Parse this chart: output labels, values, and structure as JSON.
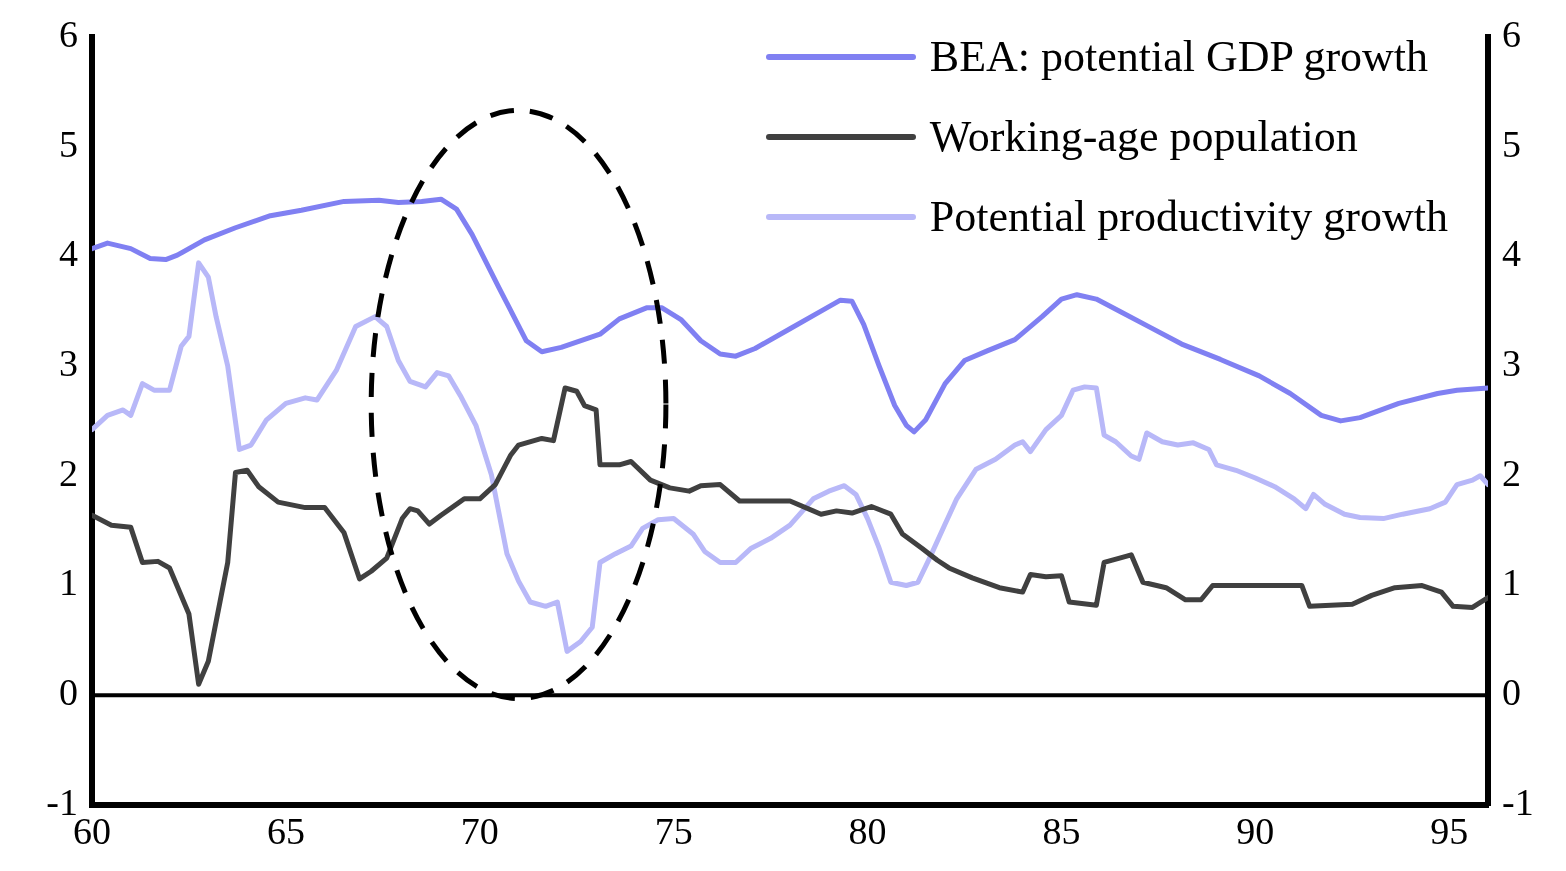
{
  "chart_data": {
    "type": "line",
    "xlim": [
      60,
      96
    ],
    "xticks": [
      60,
      65,
      70,
      75,
      80,
      85,
      90,
      95
    ],
    "ylim": [
      -1,
      6
    ],
    "yticks": [
      -1,
      0,
      1,
      2,
      3,
      4,
      5,
      6
    ],
    "y2lim": [
      -1,
      6
    ],
    "y2ticks": [
      -1,
      0,
      1,
      2,
      3,
      4,
      5,
      6
    ],
    "grid": false,
    "legend": "top right",
    "marker": "none",
    "line_style": "solid",
    "ref_lines": [
      {
        "axis": "y",
        "value": 0,
        "color": "#000000"
      }
    ],
    "series": [
      {
        "name": "BEA: potential GDP growth",
        "color": "#8080f2",
        "x": [
          60,
          60.4,
          61,
          61.5,
          61.9,
          62.2,
          62.9,
          63.7,
          64.6,
          65.4,
          66.5,
          67.4,
          67.9,
          68.5,
          69,
          69.4,
          69.8,
          70.5,
          71.2,
          71.6,
          72.1,
          73.1,
          73.6,
          74.3,
          74.7,
          75.2,
          75.7,
          76.2,
          76.6,
          77.1,
          78,
          78.8,
          79.3,
          79.6,
          79.9,
          80.3,
          80.7,
          81,
          81.2,
          81.5,
          82,
          82.5,
          83.1,
          83.8,
          84.5,
          85,
          85.4,
          85.9,
          86.5,
          87.3,
          88.1,
          89.1,
          90.1,
          90.9,
          91.7,
          92.2,
          92.7,
          93.7,
          94.7,
          95.2,
          96
        ],
        "values": [
          4.07,
          4.12,
          4.07,
          3.98,
          3.97,
          4.01,
          4.15,
          4.26,
          4.37,
          4.42,
          4.5,
          4.51,
          4.49,
          4.5,
          4.52,
          4.43,
          4.2,
          3.71,
          3.23,
          3.13,
          3.17,
          3.29,
          3.43,
          3.53,
          3.53,
          3.42,
          3.23,
          3.11,
          3.09,
          3.16,
          3.34,
          3.5,
          3.6,
          3.59,
          3.38,
          3,
          2.64,
          2.46,
          2.4,
          2.51,
          2.84,
          3.05,
          3.14,
          3.24,
          3.45,
          3.61,
          3.65,
          3.61,
          3.5,
          3.35,
          3.2,
          3.06,
          2.91,
          2.75,
          2.55,
          2.5,
          2.53,
          2.66,
          2.75,
          2.78,
          2.8
        ]
      },
      {
        "name": "Working-age population",
        "color": "#404040",
        "x": [
          60,
          60.5,
          61,
          61.3,
          61.7,
          62,
          62.5,
          62.75,
          63,
          63.3,
          63.5,
          63.7,
          64,
          64.3,
          64.8,
          65.5,
          66,
          66.5,
          66.9,
          67.2,
          67.6,
          68,
          68.2,
          68.4,
          68.7,
          69,
          69.6,
          70,
          70.4,
          70.8,
          71,
          71.6,
          71.9,
          72.2,
          72.5,
          72.7,
          73,
          73.1,
          73.6,
          73.9,
          74.4,
          74.9,
          75.4,
          75.7,
          76.2,
          76.7,
          77.2,
          78,
          78.8,
          79.2,
          79.6,
          80.1,
          80.6,
          80.9,
          81.4,
          81.8,
          82.1,
          82.7,
          83.4,
          84,
          84.2,
          84.6,
          85,
          85.2,
          85.9,
          86.1,
          86.5,
          86.8,
          87.1,
          87.7,
          88.2,
          88.6,
          88.9,
          91.2,
          91.4,
          92.5,
          93,
          93.6,
          94.3,
          94.8,
          95.1,
          95.6,
          96
        ],
        "values": [
          1.64,
          1.55,
          1.53,
          1.21,
          1.22,
          1.16,
          0.74,
          0.1,
          0.31,
          0.85,
          1.21,
          2.03,
          2.05,
          1.9,
          1.76,
          1.71,
          1.71,
          1.48,
          1.06,
          1.13,
          1.25,
          1.61,
          1.7,
          1.68,
          1.56,
          1.64,
          1.79,
          1.79,
          1.92,
          2.19,
          2.28,
          2.34,
          2.32,
          2.8,
          2.77,
          2.64,
          2.6,
          2.1,
          2.1,
          2.13,
          1.96,
          1.89,
          1.86,
          1.91,
          1.92,
          1.77,
          1.77,
          1.77,
          1.65,
          1.68,
          1.66,
          1.72,
          1.65,
          1.47,
          1.34,
          1.23,
          1.16,
          1.07,
          0.98,
          0.94,
          1.1,
          1.08,
          1.09,
          0.85,
          0.82,
          1.21,
          1.25,
          1.28,
          1.03,
          0.98,
          0.87,
          0.87,
          1,
          1,
          0.81,
          0.83,
          0.91,
          0.98,
          1,
          0.94,
          0.81,
          0.8,
          0.89
        ]
      },
      {
        "name": "Potential productivity growth",
        "color": "#b8b8f8",
        "x": [
          60,
          60.4,
          60.8,
          61,
          61.3,
          61.6,
          62,
          62.3,
          62.5,
          62.75,
          63,
          63.2,
          63.5,
          63.8,
          64.1,
          64.5,
          65,
          65.5,
          65.8,
          66.3,
          66.8,
          67.3,
          67.6,
          67.9,
          68.2,
          68.6,
          68.9,
          69.2,
          69.5,
          69.9,
          70.3,
          70.7,
          71,
          71.3,
          71.7,
          72,
          72.25,
          72.6,
          72.9,
          73.1,
          73.5,
          73.9,
          74.2,
          74.6,
          75,
          75.5,
          75.8,
          76.2,
          76.6,
          77,
          77.5,
          78,
          78.6,
          79,
          79.4,
          79.7,
          80,
          80.3,
          80.6,
          81,
          81.3,
          81.6,
          82,
          82.3,
          82.8,
          83.3,
          83.8,
          84,
          84.2,
          84.6,
          85,
          85.3,
          85.6,
          85.9,
          86.1,
          86.4,
          86.8,
          87,
          87.2,
          87.6,
          88,
          88.4,
          88.8,
          89,
          89.5,
          90,
          90.5,
          91,
          91.3,
          91.5,
          91.8,
          92.3,
          92.7,
          93.3,
          93.8,
          94.5,
          94.9,
          95.2,
          95.6,
          95.8,
          96
        ],
        "values": [
          2.42,
          2.55,
          2.6,
          2.55,
          2.84,
          2.78,
          2.78,
          3.18,
          3.27,
          3.94,
          3.81,
          3.45,
          3,
          2.24,
          2.28,
          2.51,
          2.66,
          2.71,
          2.69,
          2.96,
          3.36,
          3.45,
          3.36,
          3.05,
          2.86,
          2.81,
          2.94,
          2.91,
          2.73,
          2.46,
          2.01,
          1.29,
          1.04,
          0.85,
          0.81,
          0.85,
          0.4,
          0.49,
          0.62,
          1.21,
          1.29,
          1.36,
          1.52,
          1.6,
          1.61,
          1.47,
          1.31,
          1.21,
          1.21,
          1.34,
          1.43,
          1.55,
          1.79,
          1.86,
          1.91,
          1.83,
          1.61,
          1.34,
          1.03,
          1,
          1.03,
          1.25,
          1.56,
          1.79,
          2.06,
          2.15,
          2.28,
          2.31,
          2.22,
          2.42,
          2.55,
          2.78,
          2.81,
          2.8,
          2.37,
          2.31,
          2.18,
          2.15,
          2.39,
          2.31,
          2.28,
          2.3,
          2.24,
          2.1,
          2.05,
          1.98,
          1.9,
          1.79,
          1.7,
          1.83,
          1.74,
          1.65,
          1.62,
          1.61,
          1.65,
          1.7,
          1.76,
          1.92,
          1.96,
          2,
          1.92
        ]
      }
    ]
  }
}
